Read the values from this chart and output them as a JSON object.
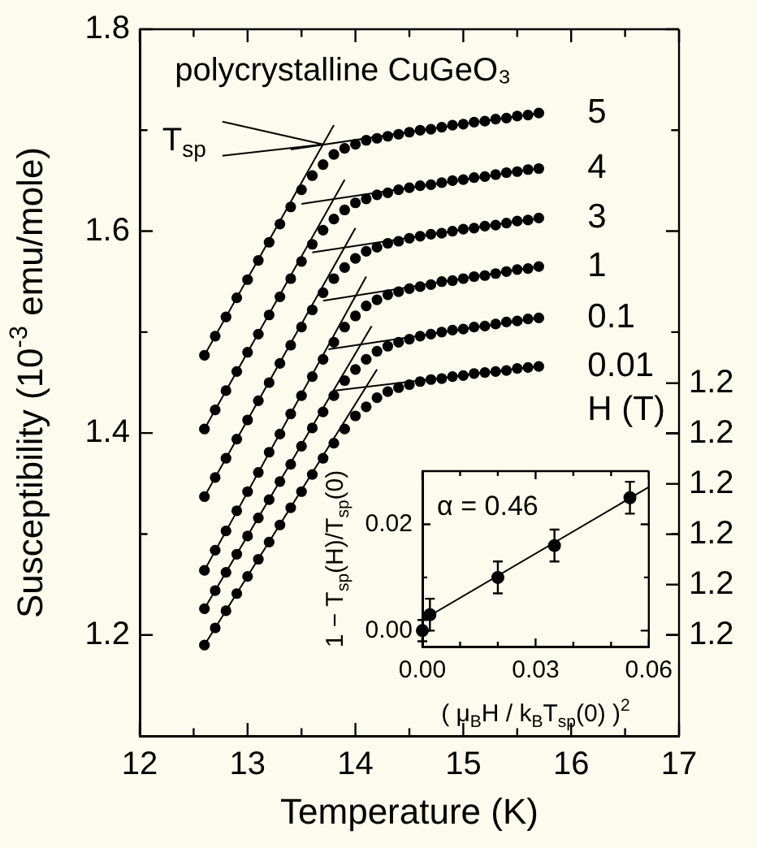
{
  "chart_data": [
    {
      "type": "scatter",
      "xlabel": "Temperature (K)",
      "ylabel": "Susceptibility (10$^{-3}$ emu/mole)",
      "legend_title": "H (T)",
      "legend": "right",
      "grid": false,
      "marker": "circle",
      "annotations": [
        "polycrystalline CuGeO₃",
        {
          "text": "T$_{sp}$",
          "x": 13.7,
          "y": 1.686
        },
        "1.2",
        "1.2",
        "1.2",
        "1.2",
        "1.2",
        "1.2"
      ],
      "xlim": [
        12,
        17
      ],
      "xticks": [
        12,
        {
          "value": 12.5,
          "label": null
        },
        13,
        {
          "value": 13.5,
          "label": null
        },
        14,
        {
          "value": 14.5,
          "label": null
        },
        15,
        {
          "value": 15.5,
          "label": null
        },
        16,
        {
          "value": 16.5,
          "label": null
        },
        17
      ],
      "ylim": [
        1.1,
        1.8
      ],
      "yticks": [
        1.2,
        {
          "value": 1.3,
          "label": null
        },
        1.4,
        {
          "value": 1.5,
          "label": null
        },
        1.6,
        {
          "value": 1.7,
          "label": null
        },
        1.8
      ],
      "x": [
        12.6,
        12.7,
        12.8,
        12.9,
        13.0,
        13.1,
        13.2,
        13.3,
        13.4,
        13.5,
        13.6,
        13.7,
        13.8,
        13.9,
        14.0,
        14.1,
        14.2,
        14.3,
        14.4,
        14.5,
        14.6,
        14.7,
        14.8,
        14.9,
        15.0,
        15.1,
        15.2,
        15.3,
        15.4,
        15.5,
        15.6,
        15.7
      ],
      "series": [
        {
          "name": "5",
          "color": "#000000",
          "values": [
            1.477,
            1.496,
            1.515,
            1.534,
            1.552,
            1.571,
            1.589,
            1.607,
            1.624,
            1.641,
            1.655,
            1.666,
            1.676,
            1.682,
            1.686,
            1.69,
            1.692,
            1.694,
            1.696,
            1.698,
            1.7,
            1.701,
            1.703,
            1.705,
            1.706,
            1.708,
            1.709,
            1.711,
            1.712,
            1.714,
            1.715,
            1.717
          ]
        },
        {
          "name": "4",
          "color": "#000000",
          "values": [
            1.404,
            1.423,
            1.442,
            1.461,
            1.48,
            1.498,
            1.517,
            1.535,
            1.553,
            1.57,
            1.587,
            1.601,
            1.612,
            1.621,
            1.628,
            1.632,
            1.636,
            1.638,
            1.641,
            1.643,
            1.645,
            1.646,
            1.648,
            1.65,
            1.651,
            1.653,
            1.654,
            1.656,
            1.658,
            1.659,
            1.661,
            1.662
          ]
        },
        {
          "name": "3",
          "color": "#000000",
          "values": [
            1.337,
            1.356,
            1.375,
            1.394,
            1.413,
            1.432,
            1.45,
            1.469,
            1.487,
            1.505,
            1.522,
            1.539,
            1.553,
            1.564,
            1.573,
            1.58,
            1.584,
            1.588,
            1.59,
            1.593,
            1.595,
            1.597,
            1.598,
            1.6,
            1.602,
            1.603,
            1.605,
            1.606,
            1.608,
            1.61,
            1.611,
            1.613
          ]
        },
        {
          "name": "1",
          "color": "#000000",
          "values": [
            1.264,
            1.284,
            1.303,
            1.323,
            1.342,
            1.361,
            1.381,
            1.399,
            1.419,
            1.437,
            1.456,
            1.473,
            1.49,
            1.505,
            1.516,
            1.526,
            1.532,
            1.537,
            1.54,
            1.543,
            1.545,
            1.547,
            1.55,
            1.551,
            1.553,
            1.555,
            1.556,
            1.558,
            1.56,
            1.562,
            1.563,
            1.565
          ]
        },
        {
          "name": "0.1",
          "color": "#000000",
          "values": [
            1.226,
            1.244,
            1.262,
            1.28,
            1.298,
            1.316,
            1.334,
            1.352,
            1.369,
            1.387,
            1.405,
            1.421,
            1.437,
            1.452,
            1.463,
            1.473,
            1.481,
            1.486,
            1.49,
            1.493,
            1.496,
            1.498,
            1.5,
            1.502,
            1.503,
            1.505,
            1.506,
            1.508,
            1.51,
            1.511,
            1.513,
            1.514
          ]
        },
        {
          "name": "0.01",
          "color": "#000000",
          "values": [
            1.19,
            1.207,
            1.224,
            1.241,
            1.258,
            1.275,
            1.292,
            1.309,
            1.326,
            1.342,
            1.359,
            1.375,
            1.39,
            1.404,
            1.417,
            1.426,
            1.435,
            1.441,
            1.445,
            1.448,
            1.451,
            1.453,
            1.454,
            1.456,
            1.457,
            1.459,
            1.46,
            1.461,
            1.462,
            1.464,
            1.465,
            1.466
          ]
        },
        {
          "type": "line",
          "marker": "none",
          "color": "#000000",
          "x": [
            12.6,
            13.8
          ],
          "values": [
            1.477,
            1.705
          ]
        },
        {
          "type": "line",
          "marker": "none",
          "color": "#000000",
          "x": [
            13.4,
            15.7
          ],
          "values": [
            1.681,
            1.717
          ]
        },
        {
          "type": "line",
          "marker": "none",
          "color": "#000000",
          "x": [
            12.6,
            13.9
          ],
          "values": [
            1.404,
            1.651
          ]
        },
        {
          "type": "line",
          "marker": "none",
          "color": "#000000",
          "x": [
            13.5,
            15.7
          ],
          "values": [
            1.627,
            1.662
          ]
        },
        {
          "type": "line",
          "marker": "none",
          "color": "#000000",
          "x": [
            12.6,
            14.0
          ],
          "values": [
            1.337,
            1.603
          ]
        },
        {
          "type": "line",
          "marker": "none",
          "color": "#000000",
          "x": [
            13.6,
            15.7
          ],
          "values": [
            1.579,
            1.613
          ]
        },
        {
          "type": "line",
          "marker": "none",
          "color": "#000000",
          "x": [
            12.6,
            14.1
          ],
          "values": [
            1.264,
            1.555
          ]
        },
        {
          "type": "line",
          "marker": "none",
          "color": "#000000",
          "x": [
            13.7,
            15.7
          ],
          "values": [
            1.531,
            1.565
          ]
        },
        {
          "type": "line",
          "marker": "none",
          "color": "#000000",
          "x": [
            12.6,
            14.15
          ],
          "values": [
            1.226,
            1.506
          ]
        },
        {
          "type": "line",
          "marker": "none",
          "color": "#000000",
          "x": [
            13.75,
            15.7
          ],
          "values": [
            1.483,
            1.514
          ]
        },
        {
          "type": "line",
          "marker": "none",
          "color": "#000000",
          "x": [
            12.6,
            14.2
          ],
          "values": [
            1.19,
            1.463
          ]
        },
        {
          "type": "line",
          "marker": "none",
          "color": "#000000",
          "x": [
            13.8,
            15.7
          ],
          "values": [
            1.442,
            1.466
          ]
        }
      ]
    },
    {
      "type": "scatter",
      "xlabel": "( μ$_{B}$H / k$_{B}$T$_{sp}$(0) )$^{2}$",
      "ylabel": "1 − T$_{sp}$(H)/T$_{sp}$(0)",
      "grid": false,
      "marker": "circle",
      "annotations": [
        "α = 0.46"
      ],
      "xlim": [
        0,
        0.06
      ],
      "xticks": [
        {
          "value": 0,
          "label": "0.00"
        },
        {
          "value": 0.01,
          "label": null
        },
        {
          "value": 0.02,
          "label": null
        },
        {
          "value": 0.03,
          "label": "0.03"
        },
        {
          "value": 0.04,
          "label": null
        },
        {
          "value": 0.05,
          "label": null
        },
        {
          "value": 0.06,
          "label": "0.06"
        }
      ],
      "ylim": [
        -0.003,
        0.03
      ],
      "yticks": [
        {
          "value": 0,
          "label": "0.00"
        },
        {
          "value": 0.01,
          "label": null
        },
        {
          "value": 0.02,
          "label": "0.02"
        }
      ],
      "series": [
        {
          "color": "#000000",
          "x": [
            0,
            0.002,
            0.02,
            0.035,
            0.055
          ],
          "values": [
            0.0,
            0.003,
            0.01,
            0.016,
            0.025
          ],
          "errors": [
            0.002,
            0.003,
            0.003,
            0.003,
            0.003
          ]
        },
        {
          "type": "line",
          "marker": "none",
          "color": "#000000",
          "x": [
            0,
            0.06
          ],
          "values": [
            0.002,
            0.027
          ]
        }
      ]
    }
  ]
}
